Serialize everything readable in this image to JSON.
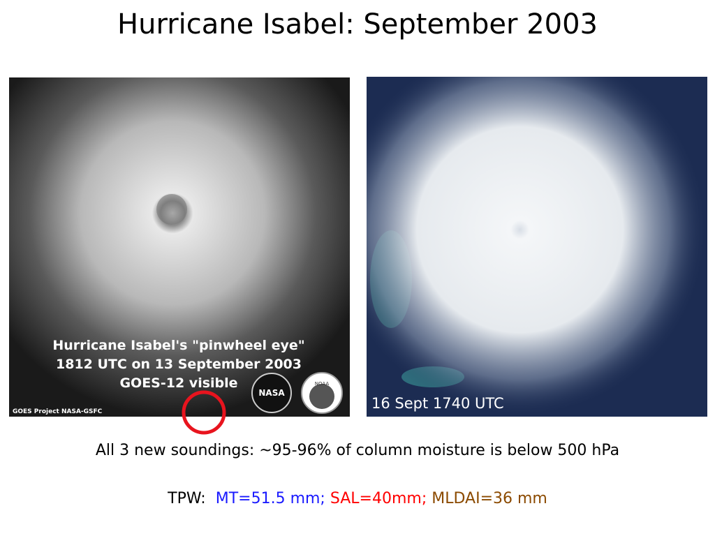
{
  "title": "Hurricane Isabel: September 2003",
  "images": [
    {
      "caption_lines": [
        "Hurricane Isabel's \"pinwheel eye\"",
        "1812 UTC on 13 September 2003",
        "GOES-12 visible"
      ],
      "credit": "GOES Project  NASA-GSFC",
      "logos": [
        "NASA",
        "NOAA"
      ]
    },
    {
      "caption": "16 Sept 1740 UTC"
    }
  ],
  "summary": "All 3 new soundings: ~95-96% of column moisture is below 500 hPa",
  "tpw": {
    "label": "TPW:",
    "parts": [
      {
        "text": "MT=51.5 mm;",
        "color": "#1a1aff"
      },
      {
        "text": "SAL=40mm;",
        "color": "#ff0000"
      },
      {
        "text": "MLDAI=36 mm",
        "color": "#8b4a00"
      }
    ]
  }
}
